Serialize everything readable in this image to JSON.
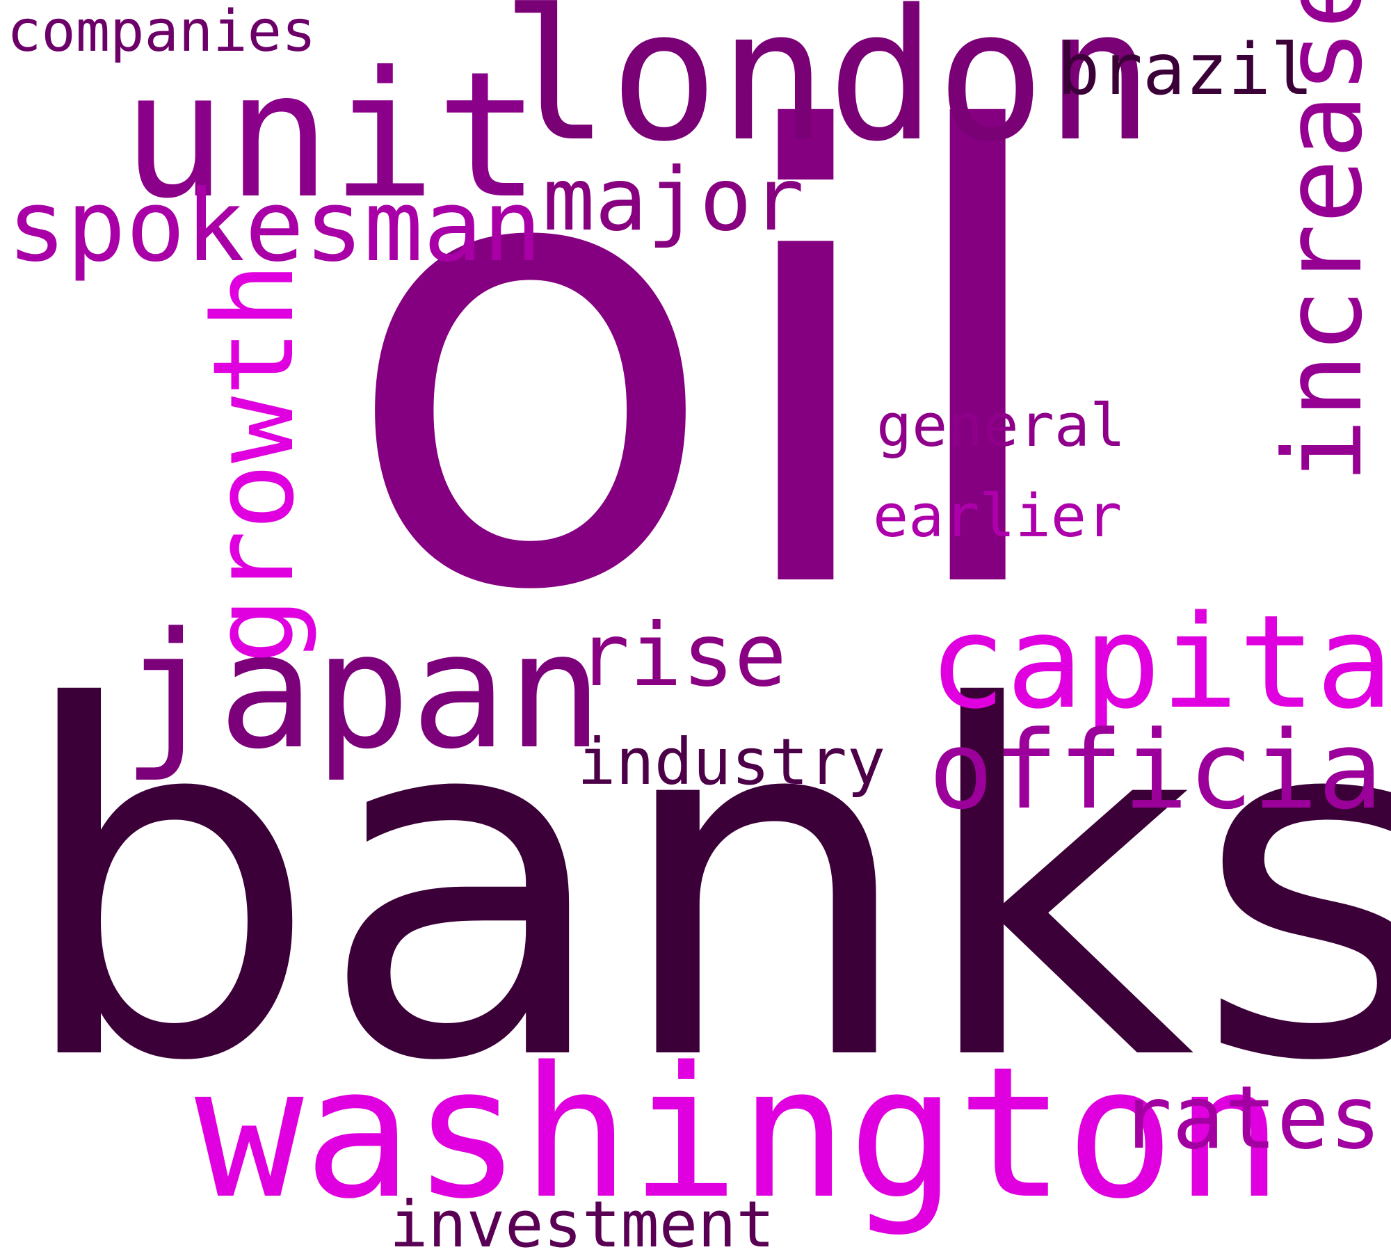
{
  "words": {
    "oil": {
      "text": "oil",
      "color": "#850080"
    },
    "banks": {
      "text": "banks",
      "color": "#3c0038"
    },
    "washington": {
      "text": "washington",
      "color": "#e000df"
    },
    "london": {
      "text": "london",
      "color": "#7a0075"
    },
    "unit": {
      "text": "unit",
      "color": "#8a0088"
    },
    "japan": {
      "text": "japan",
      "color": "#7c007a"
    },
    "capital": {
      "text": "capital",
      "color": "#e000df"
    },
    "officials": {
      "text": "officials",
      "color": "#9c009a"
    },
    "increase": {
      "text": "increase",
      "color": "#950093"
    },
    "growth": {
      "text": "growth",
      "color": "#e000df"
    },
    "spokesman": {
      "text": "spokesman",
      "color": "#a800a6"
    },
    "major": {
      "text": "major",
      "color": "#87007f"
    },
    "rise": {
      "text": "rise",
      "color": "#8a0083"
    },
    "rates": {
      "text": "rates",
      "color": "#a200a0"
    },
    "brazil": {
      "text": "brazil",
      "color": "#3c0038"
    },
    "companies": {
      "text": "companies",
      "color": "#6c0068"
    },
    "general": {
      "text": "general",
      "color": "#8e008a"
    },
    "earlier": {
      "text": "earlier",
      "color": "#ad00ab"
    },
    "industry": {
      "text": "industry",
      "color": "#4c0048"
    },
    "investment": {
      "text": "investment",
      "color": "#5a0054"
    }
  }
}
